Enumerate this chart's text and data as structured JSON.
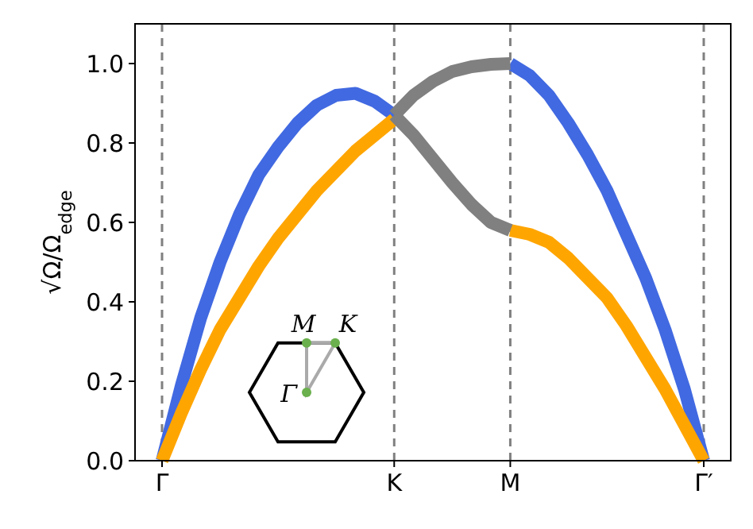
{
  "chart_data": {
    "type": "line",
    "ylabel": "√Ω/Ω$_{edge}$",
    "ylim": [
      0,
      1.1
    ],
    "categories": [
      "Γ",
      null,
      null,
      null,
      null,
      null,
      null,
      null,
      null,
      null,
      null,
      null,
      "K",
      null,
      null,
      null,
      null,
      null,
      "M",
      null,
      null,
      null,
      null,
      null,
      null,
      null,
      null,
      null,
      "Γ′"
    ],
    "yticks": [
      {
        "value": 0,
        "label": "0.0"
      },
      {
        "value": 0.2,
        "label": "0.2"
      },
      {
        "value": 0.4,
        "label": "0.4"
      },
      {
        "value": 0.6,
        "label": "0.6"
      },
      {
        "value": 0.8,
        "label": "0.8"
      },
      {
        "value": 1,
        "label": "1.0"
      }
    ],
    "series": [
      {
        "color": "#4169e1",
        "values": [
          0,
          0.19,
          0.36,
          0.5,
          0.62,
          0.72,
          0.79,
          0.85,
          0.895,
          0.92,
          0.925,
          0.905,
          0.87,
          null,
          null,
          null,
          null,
          null,
          1.0,
          0.97,
          0.92,
          0.85,
          0.77,
          0.68,
          0.57,
          0.46,
          0.33,
          0.18,
          0
        ]
      },
      {
        "color": "#ffa500",
        "values": [
          0,
          0.12,
          0.23,
          0.33,
          0.41,
          0.49,
          0.56,
          0.62,
          0.68,
          0.73,
          0.78,
          0.82,
          0.86,
          null,
          null,
          null,
          null,
          null,
          0.58,
          0.57,
          0.55,
          0.51,
          0.46,
          0.41,
          0.34,
          0.26,
          0.18,
          0.09,
          0
        ]
      },
      {
        "color": "#808080",
        "values": [
          null,
          null,
          null,
          null,
          null,
          null,
          null,
          null,
          null,
          null,
          null,
          null,
          0.87,
          0.92,
          0.955,
          0.98,
          0.992,
          0.998,
          1.0,
          null,
          null,
          null,
          null,
          null,
          null,
          null,
          null,
          null,
          null
        ]
      },
      {
        "color": "#808080",
        "values": [
          null,
          null,
          null,
          null,
          null,
          null,
          null,
          null,
          null,
          null,
          null,
          null,
          0.87,
          0.82,
          0.76,
          0.7,
          0.645,
          0.6,
          0.58,
          null,
          null,
          null,
          null,
          null,
          null,
          null,
          null,
          null,
          null
        ]
      }
    ],
    "ref_lines": [
      {
        "axis": "x",
        "value": "Γ",
        "color": "#808080",
        "line_style": "dashed"
      },
      {
        "axis": "x",
        "value": "K",
        "color": "#808080",
        "line_style": "dashed"
      },
      {
        "axis": "x",
        "value": "M",
        "color": "#808080",
        "line_style": "dashed"
      },
      {
        "axis": "x",
        "value": "Γ′",
        "color": "#808080",
        "line_style": "dashed"
      }
    ],
    "annotations": [
      "M",
      "K",
      "Γ"
    ],
    "grid": false,
    "marker": "none",
    "line_style": "solid"
  }
}
